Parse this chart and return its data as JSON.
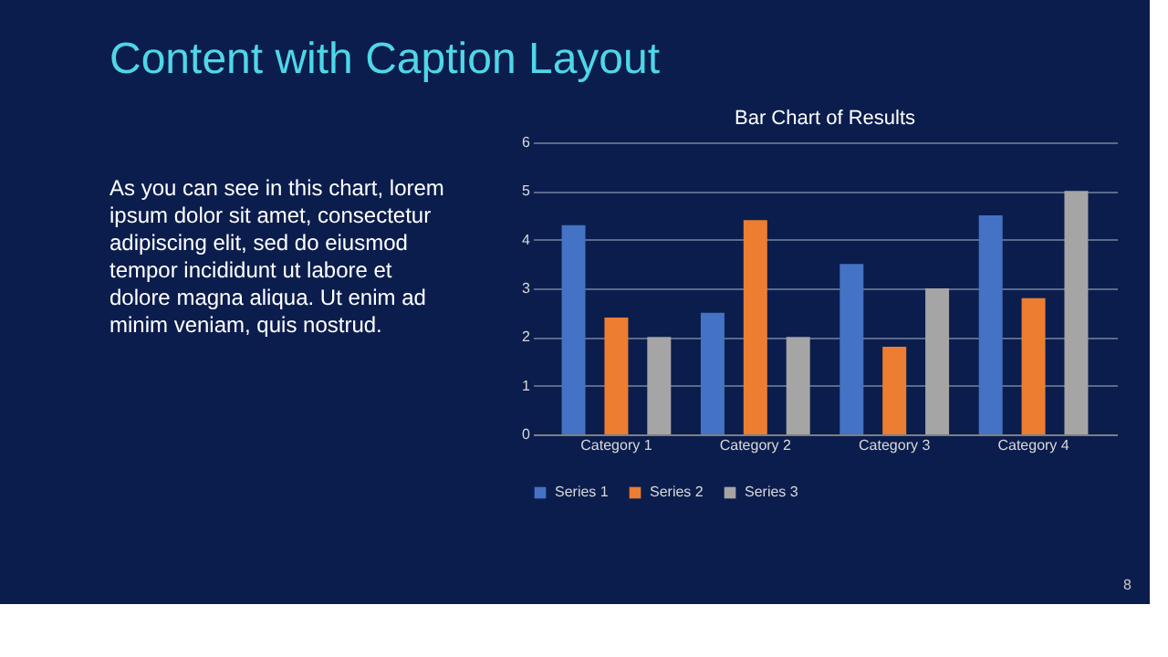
{
  "chart_data": [
    {
      "type": "other",
      "title": "Content with Caption Layout",
      "annotations": [
        "As you can see in this chart, lorem ipsum dolor sit amet, consectetur adipiscing elit, sed do eiusmod tempor incididunt ut labore et dolore magna aliqua. Ut enim ad minim veniam, quis nostrud.",
        "8"
      ]
    },
    {
      "type": "bar",
      "title": "Bar Chart of Results",
      "categories": [
        "Category 1",
        "Category 2",
        "Category 3",
        "Category 4"
      ],
      "series": [
        {
          "name": "Series 1",
          "color": "#4472c4",
          "values": [
            4.3,
            2.5,
            3.5,
            4.5
          ]
        },
        {
          "name": "Series 2",
          "color": "#ed7d31",
          "values": [
            2.4,
            4.4,
            1.8,
            2.8
          ]
        },
        {
          "name": "Series 3",
          "color": "#a5a5a5",
          "values": [
            2,
            2,
            3,
            5
          ]
        }
      ],
      "ylim": [
        0,
        6
      ],
      "yticks": [
        0,
        1,
        2,
        3,
        4,
        5,
        6
      ],
      "grid": "y",
      "legend": "bottom"
    }
  ]
}
